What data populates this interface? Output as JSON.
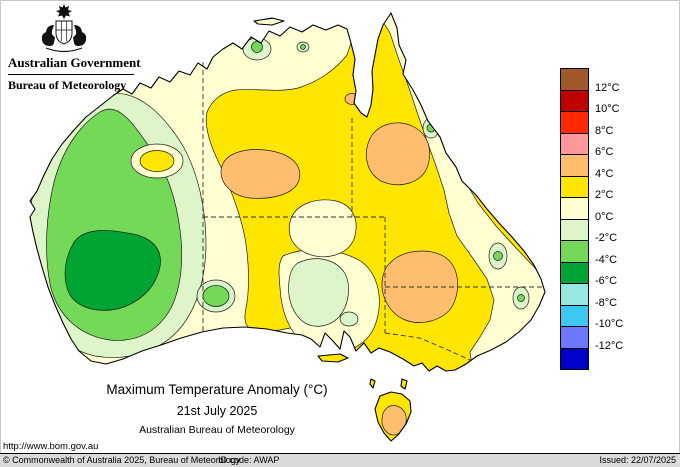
{
  "header": {
    "gov_label": "Australian Government",
    "bureau_label": "Bureau of Meteorology"
  },
  "titles": {
    "line1": "Maximum Temperature Anomaly (°C)",
    "line2": "21st July 2025",
    "line3": "Australian Bureau of Meteorology"
  },
  "footer": {
    "url": "http://www.bom.gov.au",
    "copyright": "© Commonwealth of Australia 2025, Bureau of Meteorology",
    "id_code": "ID code: AWAP",
    "issued": "Issued: 22/07/2025"
  },
  "legend": {
    "labels": [
      "12°C",
      "10°C",
      "8°C",
      "6°C",
      "4°C",
      "2°C",
      "0°C",
      "-2°C",
      "-4°C",
      "-6°C",
      "-8°C",
      "-10°C",
      "-12°C"
    ],
    "color_keys": [
      "brown",
      "dark_red",
      "red",
      "pink",
      "orange",
      "yellow",
      "cream",
      "pale_green",
      "light_green",
      "green",
      "aqua",
      "cyan",
      "blue",
      "dark_blue"
    ]
  },
  "palette": {
    "brown": "#A0582C",
    "dark_red": "#C00000",
    "red": "#FF2800",
    "pink": "#FF9898",
    "orange": "#FFBE6E",
    "yellow": "#FFE600",
    "cream": "#FFFFD2",
    "pale_green": "#DDF5C9",
    "light_green": "#74D958",
    "green": "#00A432",
    "aqua": "#96E8E0",
    "cyan": "#3CC8F0",
    "blue": "#6E78FF",
    "dark_blue": "#0000C8"
  }
}
